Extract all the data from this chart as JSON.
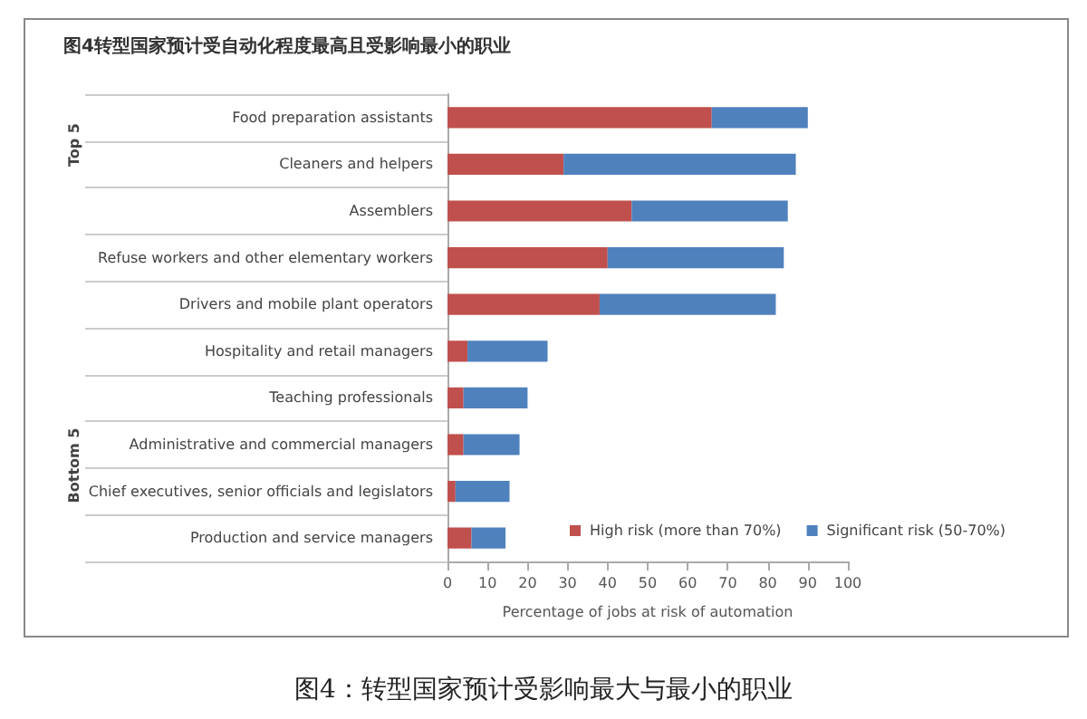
{
  "chart_data": {
    "type": "bar",
    "orientation": "horizontal",
    "stacked": true,
    "title": "图4转型国家预计受自动化程度最高且受影响最小的职业",
    "xlabel": "Percentage of jobs at risk of automation",
    "categories": [
      "Food preparation assistants",
      "Cleaners and helpers",
      "Assemblers",
      "Refuse workers and other elementary workers",
      "Drivers and mobile plant operators",
      "Hospitality and retail managers",
      "Teaching professionals",
      "Administrative and commercial managers",
      "Chief executives, senior officials and legislators",
      "Production and service managers"
    ],
    "series": [
      {
        "name": "High risk (more than 70%)",
        "color": "#c0504d",
        "values": [
          66,
          29,
          46,
          40,
          38,
          5,
          4,
          4,
          2,
          6
        ]
      },
      {
        "name": "Significant risk (50-70%)",
        "color": "#4f81bd",
        "values": [
          24,
          58,
          39,
          44,
          44,
          20,
          16,
          14,
          13.5,
          8.5
        ]
      }
    ],
    "xlim": [
      0,
      100
    ],
    "xticks": [
      0,
      10,
      20,
      30,
      40,
      50,
      60,
      70,
      80,
      90,
      100
    ],
    "grid": false,
    "legend": "bottom right",
    "annotations": [
      "Top 5",
      "Bottom 5",
      "图4：转型国家预计受影响最大与最小的职业"
    ]
  }
}
